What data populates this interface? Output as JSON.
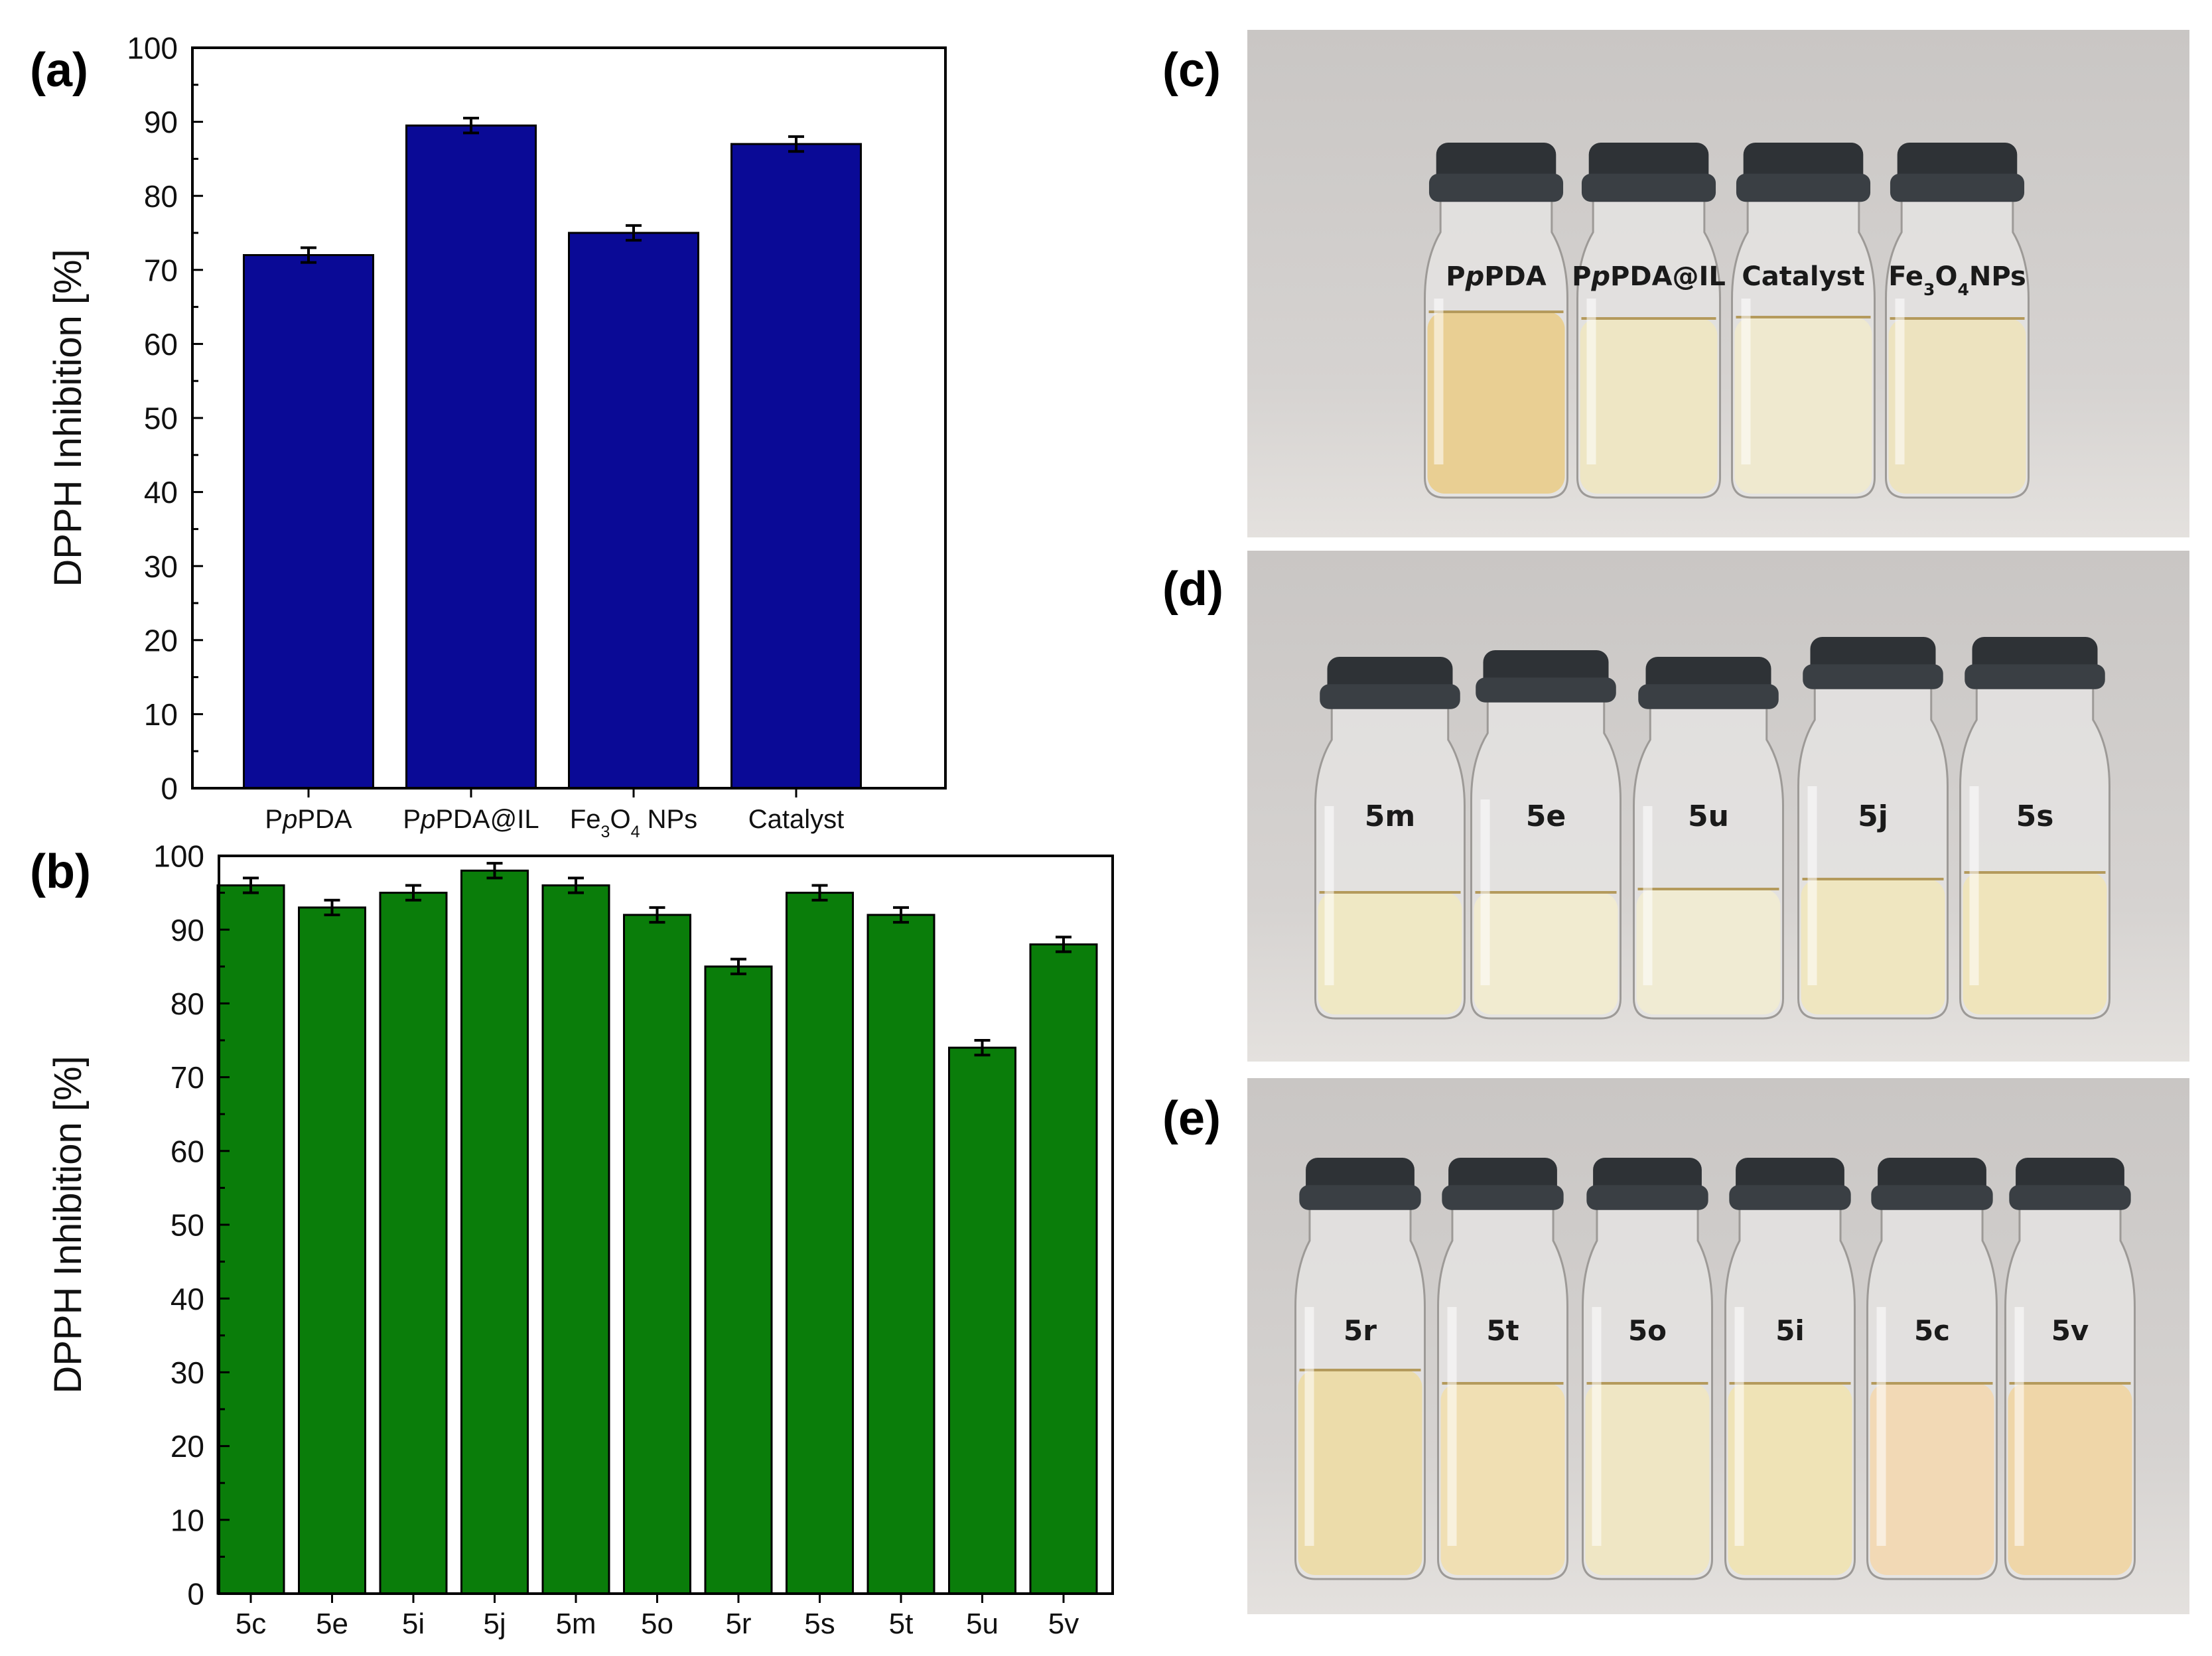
{
  "panels": {
    "a": "(a)",
    "b": "(b)",
    "c": "(c)",
    "d": "(d)",
    "e": "(e)"
  },
  "colors": {
    "bar_a": "#0a0a96",
    "bar_b": "#0a7d0a",
    "bar_outline": "#000000",
    "photo_bg": "#cfcccb",
    "cap": "#2e3236"
  },
  "chart_data": [
    {
      "panel": "(a)",
      "type": "bar",
      "categories": [
        "PpPDA",
        "PpPDA@IL",
        "Fe3O4 NPs",
        "Catalyst"
      ],
      "category_labels_rich": [
        [
          {
            "t": "P"
          },
          {
            "t": "p",
            "i": true
          },
          {
            "t": "PDA"
          }
        ],
        [
          {
            "t": "P"
          },
          {
            "t": "p",
            "i": true
          },
          {
            "t": "PDA@IL"
          }
        ],
        [
          {
            "t": "Fe"
          },
          {
            "t": "3",
            "sub": true
          },
          {
            "t": "O"
          },
          {
            "t": "4",
            "sub": true
          },
          {
            "t": " NPs"
          }
        ],
        [
          {
            "t": "Catalyst"
          }
        ]
      ],
      "values": [
        72,
        89.5,
        75,
        87
      ],
      "errors": [
        1,
        1,
        1,
        1
      ],
      "ylabel": "DPPH Inhibition [%]",
      "ylim": [
        0,
        100
      ],
      "yticks": [
        "0",
        "10",
        "20",
        "30",
        "40",
        "50",
        "60",
        "70",
        "80",
        "90",
        "100"
      ],
      "grid": false,
      "color": "#0a0a96"
    },
    {
      "panel": "(b)",
      "type": "bar",
      "categories": [
        "5c",
        "5e",
        "5i",
        "5j",
        "5m",
        "5o",
        "5r",
        "5s",
        "5t",
        "5u",
        "5v"
      ],
      "values": [
        96,
        93,
        95,
        98,
        96,
        92,
        85,
        95,
        92,
        74,
        88
      ],
      "errors": [
        1,
        1,
        1,
        1,
        1,
        1,
        1,
        1,
        1,
        1,
        1
      ],
      "ylabel": "DPPH Inhibition [%]",
      "ylim": [
        0,
        100
      ],
      "yticks": [
        "0",
        "10",
        "20",
        "30",
        "40",
        "50",
        "60",
        "70",
        "80",
        "90",
        "100"
      ],
      "grid": false,
      "color": "#0a7d0a"
    }
  ],
  "photos": {
    "c": {
      "labels": [
        [
          {
            "t": "P"
          },
          {
            "t": "p",
            "i": true
          },
          {
            "t": "PDA"
          }
        ],
        [
          {
            "t": "P"
          },
          {
            "t": "p",
            "i": true
          },
          {
            "t": "PDA@IL"
          }
        ],
        [
          {
            "t": "Catalyst"
          }
        ],
        [
          {
            "t": "Fe"
          },
          {
            "t": "3",
            "sub": true
          },
          {
            "t": "O"
          },
          {
            "t": "4",
            "sub": true
          },
          {
            "t": "NPs"
          }
        ]
      ],
      "liquid_colors": [
        "#e9cf93",
        "#eee6c4",
        "#efe9cf",
        "#ede3bf"
      ]
    },
    "d": {
      "labels": [
        "5m",
        "5e",
        "5u",
        "5j",
        "5s"
      ],
      "liquid_colors": [
        "#efe8c4",
        "#f1ebd0",
        "#f0ebd3",
        "#efe6c0",
        "#efe4bb"
      ]
    },
    "e": {
      "labels": [
        "5r",
        "5t",
        "5o",
        "5i",
        "5c",
        "5v"
      ],
      "liquid_colors": [
        "#ecdcaa",
        "#f0dfb3",
        "#efe6c4",
        "#efe3b6",
        "#f2d9b5",
        "#efd6a8"
      ]
    }
  }
}
